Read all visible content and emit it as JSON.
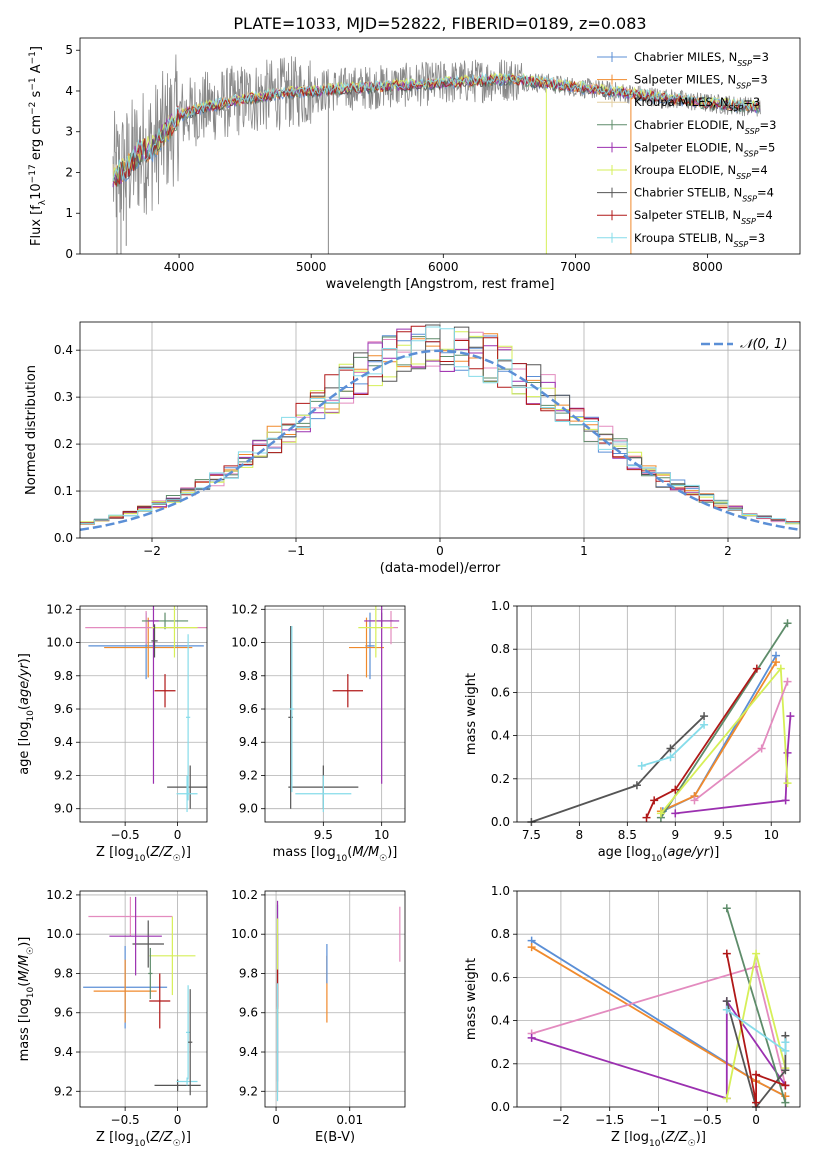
{
  "figure_title": "PLATE=1033, MJD=52822, FIBERID=0189, z=0.083",
  "colors": {
    "chabrier_miles": "#5b8fd6",
    "salpeter_miles": "#f08a2c",
    "kroupa_miles": "#e3cfa1",
    "chabrier_elodie": "#5e8c6a",
    "salpeter_elodie": "#9b30b0",
    "kroupa_elodie": "#d6ef58",
    "chabrier_stelib": "#555555",
    "salpeter_stelib": "#b01818",
    "kroupa_stelib": "#86dcea",
    "pink": "#e38bbf",
    "data": "#888888",
    "gauss": "#5b8fd6"
  },
  "chart_data": [
    {
      "id": "spectrum",
      "type": "line",
      "xlabel": "wavelength [Angstrom, rest frame]",
      "ylabel": "Flux [f_λ 10^-17 erg cm^-2 s^-1 A^-1]",
      "xlim": [
        3250,
        8700
      ],
      "ylim": [
        0,
        5.3
      ],
      "xticks": [
        4000,
        5000,
        6000,
        7000,
        8000
      ],
      "yticks": [
        0,
        1,
        2,
        3,
        4,
        5
      ],
      "grid": false,
      "legend_position": "upper right",
      "legend": [
        {
          "name": "Chabrier MILES, N",
          "sub": "SSP",
          "eq": "=3",
          "color": "#5b8fd6"
        },
        {
          "name": "Salpeter MILES, N",
          "sub": "SSP",
          "eq": "=3",
          "color": "#f08a2c"
        },
        {
          "name": "Kroupa MILES, N",
          "sub": "SSP",
          "eq": "=3",
          "color": "#e3cfa1"
        },
        {
          "name": "Chabrier ELODIE, N",
          "sub": "SSP",
          "eq": "=3",
          "color": "#5e8c6a"
        },
        {
          "name": "Salpeter ELODIE, N",
          "sub": "SSP",
          "eq": "=5",
          "color": "#9b30b0"
        },
        {
          "name": "Kroupa ELODIE, N",
          "sub": "SSP",
          "eq": "=4",
          "color": "#d6ef58"
        },
        {
          "name": "Chabrier STELIB, N",
          "sub": "SSP",
          "eq": "=4",
          "color": "#555555"
        },
        {
          "name": "Salpeter STELIB, N",
          "sub": "SSP",
          "eq": "=4",
          "color": "#b01818"
        },
        {
          "name": "Kroupa STELIB, N",
          "sub": "SSP",
          "eq": "=3",
          "color": "#86dcea"
        }
      ],
      "continuum": {
        "x": [
          3500,
          3600,
          3700,
          3800,
          3900,
          4000,
          4200,
          4500,
          4800,
          5000,
          5500,
          6000,
          6500,
          7000,
          7500,
          8000,
          8400
        ],
        "y": [
          1.9,
          2.1,
          2.5,
          2.6,
          3.0,
          3.4,
          3.6,
          3.8,
          3.95,
          4.0,
          4.1,
          4.2,
          4.3,
          4.1,
          3.9,
          3.7,
          3.6
        ]
      }
    },
    {
      "id": "residuals",
      "type": "histogram",
      "xlabel": "(data-model)/error",
      "ylabel": "Normed distribution",
      "xlim": [
        -2.5,
        2.5
      ],
      "ylim": [
        0,
        0.46
      ],
      "xticks": [
        -2,
        -1,
        0,
        1,
        2
      ],
      "yticks": [
        0.0,
        0.1,
        0.2,
        0.3,
        0.4
      ],
      "grid": true,
      "legend_position": "upper right",
      "legend": [
        {
          "name": "𝒩(0, 1)",
          "color": "#5b8fd6",
          "style": "dashed"
        }
      ],
      "bin_width": 0.1,
      "bin_start": -2.5
    },
    {
      "id": "age_vs_Z",
      "type": "errorbar",
      "xlabel": "Z [log10(Z/Z☉)]",
      "ylabel": "age [log10(age/yr)]",
      "xlim": [
        -0.93,
        0.28
      ],
      "ylim": [
        8.92,
        10.22
      ],
      "xticks": [
        -0.5,
        0.0
      ],
      "yticks": [
        9.0,
        9.2,
        9.4,
        9.6,
        9.8,
        10.0,
        10.2
      ],
      "grid": true,
      "points": [
        {
          "x": -0.3,
          "xe": 0.55,
          "y": 9.98,
          "ye": 0.2,
          "color": "#5b8fd6"
        },
        {
          "x": -0.28,
          "xe": 0.42,
          "y": 9.97,
          "ye": 0.18,
          "color": "#f08a2c"
        },
        {
          "x": -0.3,
          "xe": 0.58,
          "y": 10.09,
          "ye": 0.1,
          "color": "#e38bbf"
        },
        {
          "x": -0.12,
          "xe": 0.22,
          "y": 10.13,
          "ye": 0.05,
          "color": "#5e8c6a"
        },
        {
          "x": -0.23,
          "xe": 0.05,
          "y": 10.13,
          "ye": 0.98,
          "color": "#9b30b0"
        },
        {
          "x": -0.03,
          "xe": 0.22,
          "y": 10.09,
          "ye": 0.18,
          "color": "#d6ef58"
        },
        {
          "x": 0.12,
          "xe": 0.22,
          "y": 9.13,
          "ye": 0.13,
          "color": "#555555"
        },
        {
          "x": -0.12,
          "xe": 0.1,
          "y": 9.71,
          "ye": 0.1,
          "color": "#b01818"
        },
        {
          "x": 0.09,
          "xe": 0.1,
          "y": 9.09,
          "ye": 0.11,
          "color": "#86dcea"
        },
        {
          "x": -0.22,
          "xe": 0.03,
          "y": 10.01,
          "ye": 0.1,
          "color": "#555555"
        },
        {
          "x": 0.1,
          "xe": 0.02,
          "y": 9.55,
          "ye": 0.5,
          "color": "#86dcea"
        }
      ]
    },
    {
      "id": "age_vs_mass",
      "type": "errorbar",
      "xlabel": "mass [log10(M/M☉)]",
      "ylabel": "",
      "xlim": [
        9.0,
        10.2
      ],
      "ylim": [
        8.92,
        10.22
      ],
      "xticks": [
        9.5,
        10.0
      ],
      "yticks": [
        9.0,
        9.2,
        9.4,
        9.6,
        9.8,
        10.0,
        10.2
      ],
      "grid": true,
      "points": [
        {
          "x": 9.9,
          "xe": 0.04,
          "y": 9.98,
          "ye": 0.2,
          "color": "#5b8fd6"
        },
        {
          "x": 9.87,
          "xe": 0.15,
          "y": 9.97,
          "ye": 0.18,
          "color": "#f08a2c"
        },
        {
          "x": 10.08,
          "xe": 0.06,
          "y": 10.09,
          "ye": 0.1,
          "color": "#e38bbf"
        },
        {
          "x": 10.0,
          "xe": 0.1,
          "y": 10.13,
          "ye": 0.05,
          "color": "#5e8c6a"
        },
        {
          "x": 10.0,
          "xe": 0.15,
          "y": 10.13,
          "ye": 0.98,
          "color": "#9b30b0"
        },
        {
          "x": 9.95,
          "xe": 0.15,
          "y": 10.09,
          "ye": 0.18,
          "color": "#d6ef58"
        },
        {
          "x": 9.5,
          "xe": 0.3,
          "y": 9.13,
          "ye": 0.13,
          "color": "#555555"
        },
        {
          "x": 9.71,
          "xe": 0.13,
          "y": 9.71,
          "ye": 0.1,
          "color": "#b01818"
        },
        {
          "x": 9.5,
          "xe": 0.24,
          "y": 9.09,
          "ye": 0.11,
          "color": "#86dcea"
        },
        {
          "x": 9.22,
          "xe": 0.02,
          "y": 9.55,
          "ye": 0.55,
          "color": "#555555"
        },
        {
          "x": 9.23,
          "xe": 0.02,
          "y": 9.6,
          "ye": 0.5,
          "color": "#86dcea"
        }
      ]
    },
    {
      "id": "massweight_vs_age",
      "type": "line",
      "xlabel": "age [log10(age/yr)]",
      "ylabel": "mass weight",
      "xlim": [
        7.35,
        10.3
      ],
      "ylim": [
        0,
        1.0
      ],
      "xticks": [
        7.5,
        8.0,
        8.5,
        9.0,
        9.5,
        10.0
      ],
      "yticks": [
        0.0,
        0.2,
        0.4,
        0.6,
        0.8,
        1.0
      ],
      "grid": true,
      "series": [
        {
          "color": "#555555",
          "x": [
            7.5,
            8.6,
            8.95,
            9.3
          ],
          "y": [
            0.0,
            0.17,
            0.34,
            0.49
          ]
        },
        {
          "color": "#5b8fd6",
          "x": [
            8.87,
            9.2,
            10.05
          ],
          "y": [
            0.05,
            0.12,
            0.77
          ]
        },
        {
          "color": "#f08a2c",
          "x": [
            8.85,
            9.2,
            10.05
          ],
          "y": [
            0.05,
            0.12,
            0.74
          ]
        },
        {
          "color": "#5e8c6a",
          "x": [
            8.85,
            10.17
          ],
          "y": [
            0.02,
            0.92
          ]
        },
        {
          "color": "#9b30b0",
          "x": [
            9.0,
            10.15,
            10.17,
            10.2
          ],
          "y": [
            0.04,
            0.1,
            0.32,
            0.49
          ]
        },
        {
          "color": "#d6ef58",
          "x": [
            8.85,
            10.1,
            10.17
          ],
          "y": [
            0.04,
            0.71,
            0.18
          ]
        },
        {
          "color": "#b01818",
          "x": [
            8.7,
            8.78,
            9.0,
            9.85
          ],
          "y": [
            0.02,
            0.1,
            0.15,
            0.71
          ]
        },
        {
          "color": "#86dcea",
          "x": [
            8.65,
            8.95,
            9.3
          ],
          "y": [
            0.26,
            0.3,
            0.45
          ]
        },
        {
          "color": "#e38bbf",
          "x": [
            9.2,
            9.9,
            10.17
          ],
          "y": [
            0.1,
            0.34,
            0.65
          ]
        }
      ]
    },
    {
      "id": "mass_vs_Z",
      "type": "errorbar",
      "xlabel": "Z [log10(Z/Z☉)]",
      "ylabel": "mass [log10(M/M☉)]",
      "xlim": [
        -0.93,
        0.28
      ],
      "ylim": [
        9.12,
        10.22
      ],
      "xticks": [
        -0.5,
        0.0
      ],
      "yticks": [
        9.2,
        9.4,
        9.6,
        9.8,
        10.0,
        10.2
      ],
      "grid": true,
      "points": [
        {
          "x": -0.5,
          "xe": 0.4,
          "y": 9.73,
          "ye": 0.21,
          "color": "#5b8fd6"
        },
        {
          "x": -0.5,
          "xe": 0.3,
          "y": 9.71,
          "ye": 0.16,
          "color": "#f08a2c"
        },
        {
          "x": -0.45,
          "xe": 0.4,
          "y": 10.09,
          "ye": 0.1,
          "color": "#e38bbf"
        },
        {
          "x": -0.28,
          "xe": 0.15,
          "y": 9.95,
          "ye": 0.12,
          "color": "#555555"
        },
        {
          "x": -0.4,
          "xe": 0.25,
          "y": 9.99,
          "ye": 0.2,
          "color": "#9b30b0"
        },
        {
          "x": -0.05,
          "xe": 0.22,
          "y": 9.89,
          "ye": 0.2,
          "color": "#d6ef58"
        },
        {
          "x": -0.17,
          "xe": 0.1,
          "y": 9.66,
          "ye": 0.14,
          "color": "#b01818"
        },
        {
          "x": 0.0,
          "xe": 0.22,
          "y": 9.23,
          "ye": 0.03,
          "color": "#555555"
        },
        {
          "x": 0.09,
          "xe": 0.1,
          "y": 9.25,
          "ye": 0.02,
          "color": "#86dcea"
        },
        {
          "x": 0.1,
          "xe": 0.02,
          "y": 9.5,
          "ye": 0.24,
          "color": "#86dcea"
        },
        {
          "x": 0.12,
          "xe": 0.02,
          "y": 9.45,
          "ye": 0.27,
          "color": "#555555"
        },
        {
          "x": -0.26,
          "xe": 0.02,
          "y": 9.8,
          "ye": 0.13,
          "color": "#5e8c6a"
        }
      ]
    },
    {
      "id": "mass_vs_ebv",
      "type": "errorbar",
      "xlabel": "E(B-V)",
      "ylabel": "",
      "xlim": [
        -0.0015,
        0.0175
      ],
      "ylim": [
        9.12,
        10.22
      ],
      "xticks": [
        0.0,
        0.01
      ],
      "yticks": [
        9.2,
        9.4,
        9.6,
        9.8,
        10.0,
        10.2
      ],
      "grid": true,
      "points": [
        {
          "x": 0.0002,
          "xe": 0,
          "y": 9.7,
          "ye": 0.45,
          "color": "#5b8fd6"
        },
        {
          "x": 0.0002,
          "xe": 0,
          "y": 9.6,
          "ye": 0.4,
          "color": "#555555"
        },
        {
          "x": 0.0002,
          "xe": 0,
          "y": 9.9,
          "ye": 0.27,
          "color": "#9b30b0"
        },
        {
          "x": 0.0002,
          "xe": 0,
          "y": 9.8,
          "ye": 0.28,
          "color": "#d6ef58"
        },
        {
          "x": 0.0002,
          "xe": 0,
          "y": 9.72,
          "ye": 0.1,
          "color": "#b01818"
        },
        {
          "x": 0.0002,
          "xe": 0,
          "y": 9.45,
          "ye": 0.3,
          "color": "#86dcea"
        },
        {
          "x": 0.0069,
          "xe": 0,
          "y": 9.72,
          "ye": 0.17,
          "color": "#f08a2c"
        },
        {
          "x": 0.0069,
          "xe": 0,
          "y": 9.85,
          "ye": 0.1,
          "color": "#5b8fd6"
        },
        {
          "x": 0.0168,
          "xe": 0,
          "y": 10.0,
          "ye": 0.14,
          "color": "#e38bbf"
        }
      ]
    },
    {
      "id": "massweight_vs_Z",
      "type": "line",
      "xlabel": "Z [log10(Z/Z☉)]",
      "ylabel": "mass weight",
      "xlim": [
        -2.45,
        0.45
      ],
      "ylim": [
        0,
        1.0
      ],
      "xticks": [
        -2.0,
        -1.5,
        -1.0,
        -0.5,
        0.0
      ],
      "yticks": [
        0.0,
        0.2,
        0.4,
        0.6,
        0.8,
        1.0
      ],
      "grid": true,
      "series": [
        {
          "color": "#5b8fd6",
          "x": [
            -2.3,
            0.0,
            0.3
          ],
          "y": [
            0.77,
            0.12,
            0.05
          ]
        },
        {
          "color": "#f08a2c",
          "x": [
            -2.3,
            0.0,
            0.3
          ],
          "y": [
            0.74,
            0.12,
            0.05
          ]
        },
        {
          "color": "#e38bbf",
          "x": [
            -2.3,
            0.0,
            0.3
          ],
          "y": [
            0.34,
            0.65,
            0.1
          ]
        },
        {
          "color": "#9b30b0",
          "x": [
            -2.3,
            -0.3,
            -0.3,
            0.3
          ],
          "y": [
            0.32,
            0.04,
            0.49,
            0.1
          ]
        },
        {
          "color": "#5e8c6a",
          "x": [
            -0.3,
            0.3
          ],
          "y": [
            0.92,
            0.02
          ]
        },
        {
          "color": "#d6ef58",
          "x": [
            -0.3,
            0.0,
            0.3
          ],
          "y": [
            0.04,
            0.71,
            0.18
          ]
        },
        {
          "color": "#555555",
          "x": [
            -0.3,
            0.0,
            0.3,
            0.3
          ],
          "y": [
            0.49,
            0.0,
            0.17,
            0.33
          ]
        },
        {
          "color": "#b01818",
          "x": [
            -0.3,
            0.0,
            0.0,
            0.3
          ],
          "y": [
            0.71,
            0.02,
            0.15,
            0.1
          ]
        },
        {
          "color": "#86dcea",
          "x": [
            -0.3,
            0.3,
            0.3
          ],
          "y": [
            0.45,
            0.26,
            0.3
          ]
        }
      ]
    }
  ]
}
